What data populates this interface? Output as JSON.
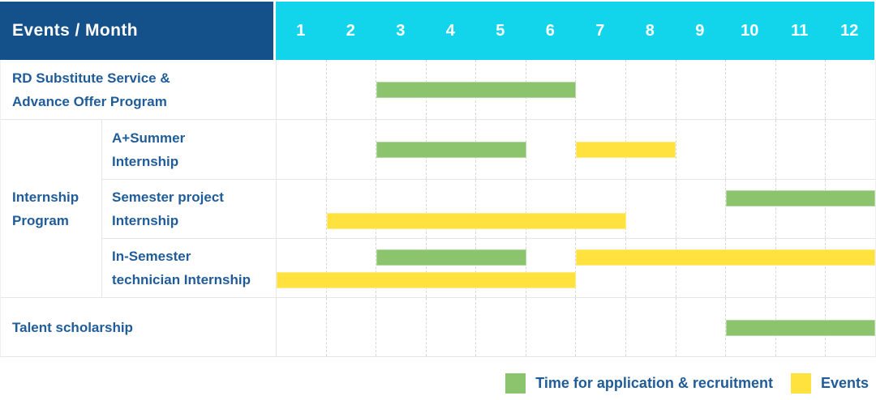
{
  "title": "Events / Month",
  "months": [
    "1",
    "2",
    "3",
    "4",
    "5",
    "6",
    "7",
    "8",
    "9",
    "10",
    "11",
    "12"
  ],
  "colors": {
    "navy_header_bg": "#14518b",
    "cyan_months_bg": "#12d5ec",
    "application_green": "#8bc46d",
    "events_yellow": "#ffe23e",
    "label_text_blue": "#1f5c99",
    "grid_line": "#e6e6e6"
  },
  "group_label_lines": [
    "Internship",
    "Program"
  ],
  "rows": [
    {
      "id": "rd-substitute-service",
      "group": null,
      "label_lines": [
        "RD Substitute Service &",
        "Advance Offer Program"
      ],
      "bands": [
        [
          {
            "type": "application",
            "start": 2,
            "span": 4
          }
        ]
      ]
    },
    {
      "id": "a-plus-summer-internship",
      "group": "internship",
      "label_lines": [
        "A+Summer",
        "Internship"
      ],
      "bands": [
        [
          {
            "type": "application",
            "start": 2,
            "span": 3
          },
          {
            "type": "events",
            "start": 6,
            "span": 2
          }
        ]
      ]
    },
    {
      "id": "semester-project-internship",
      "group": "internship",
      "label_lines": [
        "Semester project",
        "Internship"
      ],
      "bands": [
        [
          {
            "type": "application",
            "start": 9,
            "span": 3
          }
        ],
        [
          {
            "type": "events",
            "start": 1,
            "span": 6
          }
        ]
      ]
    },
    {
      "id": "in-semester-technician-internship",
      "group": "internship",
      "label_lines": [
        "In-Semester",
        "technician Internship"
      ],
      "bands": [
        [
          {
            "type": "application",
            "start": 2,
            "span": 3
          },
          {
            "type": "events",
            "start": 6,
            "span": 6
          }
        ],
        [
          {
            "type": "events",
            "start": 0,
            "span": 6
          }
        ]
      ]
    },
    {
      "id": "talent-scholarship",
      "group": null,
      "label_lines": [
        "Talent scholarship"
      ],
      "bands": [
        [
          {
            "type": "application",
            "start": 9,
            "span": 3
          }
        ]
      ]
    }
  ],
  "legend": [
    {
      "type": "application",
      "label": "Time for application & recruitment"
    },
    {
      "type": "events",
      "label": "Events"
    }
  ],
  "chart_data": {
    "type": "bar",
    "subtype": "gantt-timeline",
    "title": "Events / Month",
    "xlabel": "Month",
    "x_ticks": [
      1,
      2,
      3,
      4,
      5,
      6,
      7,
      8,
      9,
      10,
      11,
      12
    ],
    "xlim": [
      1,
      12
    ],
    "grid": "vertical-dashed-per-month",
    "legend_position": "bottom-right",
    "series_meaning": {
      "application_recruitment": "Time for application & recruitment (green)",
      "events": "Events (yellow)"
    },
    "tasks": [
      {
        "row": "RD Substitute Service & Advance Offer Program",
        "group": null,
        "application_recruitment_months": [
          [
            3,
            6
          ]
        ],
        "events_months": []
      },
      {
        "row": "A+Summer Internship",
        "group": "Internship Program",
        "application_recruitment_months": [
          [
            3,
            5
          ]
        ],
        "events_months": [
          [
            7,
            8
          ]
        ]
      },
      {
        "row": "Semester project Internship",
        "group": "Internship Program",
        "application_recruitment_months": [
          [
            10,
            12
          ]
        ],
        "events_months": [
          [
            2,
            7
          ]
        ]
      },
      {
        "row": "In-Semester technician Internship",
        "group": "Internship Program",
        "application_recruitment_months": [
          [
            3,
            5
          ]
        ],
        "events_months": [
          [
            1,
            6
          ],
          [
            7,
            12
          ]
        ]
      },
      {
        "row": "Talent scholarship",
        "group": null,
        "application_recruitment_months": [
          [
            10,
            12
          ]
        ],
        "events_months": []
      }
    ]
  }
}
